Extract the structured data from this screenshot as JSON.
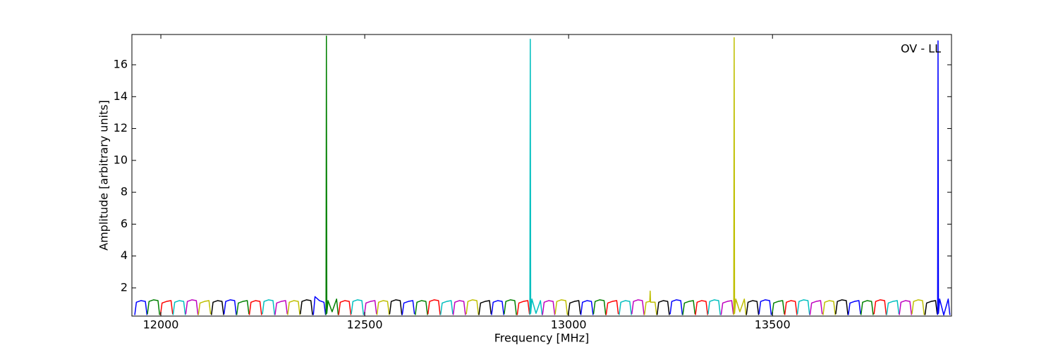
{
  "chart_data": {
    "type": "line",
    "annotation": "OV - LL",
    "xlabel": "Frequency [MHz]",
    "ylabel": "Amplitude [arbitrary units]",
    "xlim": [
      11929,
      13939
    ],
    "ylim": [
      0.23,
      17.9
    ],
    "xticks": [
      12000,
      12500,
      13000,
      13500
    ],
    "yticks": [
      2,
      4,
      6,
      8,
      10,
      12,
      14,
      16
    ],
    "grid": false,
    "series": [
      {
        "color": "#0000ff",
        "x": [
          11936,
          11940,
          11951,
          11962,
          11966
        ],
        "values": [
          0.3,
          1.1,
          1.2,
          1.15,
          0.3
        ]
      },
      {
        "color": "#008000",
        "x": [
          11967,
          11971,
          11982,
          11993,
          11997
        ],
        "values": [
          0.35,
          1.15,
          1.25,
          1.2,
          0.3
        ]
      },
      {
        "color": "#ff0000",
        "x": [
          11999,
          12003,
          12014,
          12025,
          12029
        ],
        "values": [
          0.3,
          1.05,
          1.15,
          1.2,
          0.35
        ]
      },
      {
        "color": "#00bfbf",
        "x": [
          12030,
          12034,
          12045,
          12056,
          12060
        ],
        "values": [
          0.3,
          1.1,
          1.2,
          1.15,
          0.3
        ]
      },
      {
        "color": "#bf00bf",
        "x": [
          12061,
          12065,
          12076,
          12087,
          12091
        ],
        "values": [
          0.35,
          1.15,
          1.25,
          1.2,
          0.3
        ]
      },
      {
        "color": "#bfbf00",
        "x": [
          12092,
          12096,
          12107,
          12118,
          12122
        ],
        "values": [
          0.3,
          1.05,
          1.15,
          1.2,
          0.35
        ]
      },
      {
        "color": "#000000",
        "x": [
          12124,
          12128,
          12139,
          12150,
          12154
        ],
        "values": [
          0.3,
          1.1,
          1.2,
          1.15,
          0.3
        ]
      },
      {
        "color": "#0000ff",
        "x": [
          12155,
          12159,
          12170,
          12181,
          12185
        ],
        "values": [
          0.35,
          1.15,
          1.25,
          1.2,
          0.3
        ]
      },
      {
        "color": "#008000",
        "x": [
          12186,
          12190,
          12201,
          12212,
          12216
        ],
        "values": [
          0.3,
          1.05,
          1.15,
          1.2,
          0.35
        ]
      },
      {
        "color": "#ff0000",
        "x": [
          12217,
          12221,
          12232,
          12243,
          12247
        ],
        "values": [
          0.3,
          1.1,
          1.2,
          1.15,
          0.3
        ]
      },
      {
        "color": "#00bfbf",
        "x": [
          12249,
          12253,
          12264,
          12275,
          12279
        ],
        "values": [
          0.35,
          1.15,
          1.25,
          1.2,
          0.3
        ]
      },
      {
        "color": "#bf00bf",
        "x": [
          12280,
          12284,
          12295,
          12306,
          12310
        ],
        "values": [
          0.3,
          1.05,
          1.15,
          1.2,
          0.35
        ]
      },
      {
        "color": "#bfbf00",
        "x": [
          12311,
          12315,
          12326,
          12337,
          12341
        ],
        "values": [
          0.3,
          1.1,
          1.2,
          1.15,
          0.3
        ]
      },
      {
        "color": "#000000",
        "x": [
          12342,
          12346,
          12357,
          12368,
          12372
        ],
        "values": [
          0.35,
          1.15,
          1.25,
          1.2,
          0.3
        ]
      },
      {
        "color": "#0000ff",
        "x": [
          12374,
          12378,
          12389,
          12400,
          12404
        ],
        "values": [
          0.3,
          1.45,
          1.2,
          1.1,
          0.3
        ]
      },
      {
        "color": "#008000",
        "x": [
          12405,
          12406,
          12407,
          12410,
          12420,
          12431,
          12435
        ],
        "values": [
          0.3,
          17.8,
          0.4,
          1.2,
          0.5,
          1.3,
          0.3
        ]
      },
      {
        "color": "#ff0000",
        "x": [
          12436,
          12440,
          12451,
          12462,
          12466
        ],
        "values": [
          0.3,
          1.1,
          1.2,
          1.15,
          0.3
        ]
      },
      {
        "color": "#00bfbf",
        "x": [
          12467,
          12471,
          12482,
          12493,
          12497
        ],
        "values": [
          0.35,
          1.15,
          1.25,
          1.2,
          0.3
        ]
      },
      {
        "color": "#bf00bf",
        "x": [
          12499,
          12503,
          12514,
          12525,
          12529
        ],
        "values": [
          0.3,
          1.05,
          1.15,
          1.2,
          0.35
        ]
      },
      {
        "color": "#bfbf00",
        "x": [
          12530,
          12534,
          12545,
          12556,
          12560
        ],
        "values": [
          0.3,
          1.1,
          1.2,
          1.15,
          0.3
        ]
      },
      {
        "color": "#000000",
        "x": [
          12561,
          12565,
          12576,
          12587,
          12591
        ],
        "values": [
          0.35,
          1.15,
          1.25,
          1.2,
          0.3
        ]
      },
      {
        "color": "#0000ff",
        "x": [
          12592,
          12596,
          12607,
          12618,
          12622
        ],
        "values": [
          0.3,
          1.05,
          1.15,
          1.2,
          0.35
        ]
      },
      {
        "color": "#008000",
        "x": [
          12624,
          12628,
          12639,
          12650,
          12654
        ],
        "values": [
          0.3,
          1.1,
          1.2,
          1.15,
          0.3
        ]
      },
      {
        "color": "#ff0000",
        "x": [
          12655,
          12659,
          12670,
          12681,
          12685
        ],
        "values": [
          0.35,
          1.15,
          1.25,
          1.2,
          0.3
        ]
      },
      {
        "color": "#00bfbf",
        "x": [
          12686,
          12690,
          12701,
          12712,
          12716
        ],
        "values": [
          0.3,
          1.05,
          1.15,
          1.2,
          0.35
        ]
      },
      {
        "color": "#bf00bf",
        "x": [
          12717,
          12721,
          12732,
          12743,
          12747
        ],
        "values": [
          0.3,
          1.1,
          1.2,
          1.15,
          0.3
        ]
      },
      {
        "color": "#bfbf00",
        "x": [
          12749,
          12753,
          12764,
          12775,
          12779
        ],
        "values": [
          0.35,
          1.15,
          1.25,
          1.2,
          0.3
        ]
      },
      {
        "color": "#000000",
        "x": [
          12780,
          12784,
          12795,
          12806,
          12810
        ],
        "values": [
          0.3,
          1.05,
          1.15,
          1.2,
          0.35
        ]
      },
      {
        "color": "#0000ff",
        "x": [
          12811,
          12815,
          12826,
          12837,
          12841
        ],
        "values": [
          0.3,
          1.1,
          1.2,
          1.15,
          0.3
        ]
      },
      {
        "color": "#008000",
        "x": [
          12842,
          12846,
          12857,
          12868,
          12872
        ],
        "values": [
          0.35,
          1.15,
          1.25,
          1.2,
          0.3
        ]
      },
      {
        "color": "#ff0000",
        "x": [
          12874,
          12878,
          12889,
          12900,
          12904
        ],
        "values": [
          0.3,
          1.05,
          1.15,
          1.2,
          0.35
        ]
      },
      {
        "color": "#00bfbf",
        "x": [
          12905,
          12906,
          12907,
          12910,
          12920,
          12931,
          12935
        ],
        "values": [
          0.3,
          17.6,
          0.4,
          1.3,
          0.4,
          1.2,
          0.3
        ]
      },
      {
        "color": "#bf00bf",
        "x": [
          12936,
          12940,
          12951,
          12962,
          12966
        ],
        "values": [
          0.3,
          1.1,
          1.2,
          1.15,
          0.3
        ]
      },
      {
        "color": "#bfbf00",
        "x": [
          12967,
          12971,
          12982,
          12993,
          12997
        ],
        "values": [
          0.35,
          1.15,
          1.25,
          1.2,
          0.3
        ]
      },
      {
        "color": "#000000",
        "x": [
          12999,
          13003,
          13014,
          13025,
          13029
        ],
        "values": [
          0.3,
          1.05,
          1.15,
          1.2,
          0.35
        ]
      },
      {
        "color": "#0000ff",
        "x": [
          13030,
          13034,
          13045,
          13056,
          13060
        ],
        "values": [
          0.3,
          1.1,
          1.2,
          1.15,
          0.3
        ]
      },
      {
        "color": "#008000",
        "x": [
          13061,
          13065,
          13076,
          13087,
          13091
        ],
        "values": [
          0.35,
          1.15,
          1.25,
          1.2,
          0.3
        ]
      },
      {
        "color": "#ff0000",
        "x": [
          13092,
          13096,
          13107,
          13118,
          13122
        ],
        "values": [
          0.3,
          1.05,
          1.15,
          1.2,
          0.35
        ]
      },
      {
        "color": "#00bfbf",
        "x": [
          13124,
          13128,
          13139,
          13150,
          13154
        ],
        "values": [
          0.3,
          1.1,
          1.2,
          1.15,
          0.3
        ]
      },
      {
        "color": "#bf00bf",
        "x": [
          13155,
          13159,
          13170,
          13181,
          13185
        ],
        "values": [
          0.35,
          1.15,
          1.25,
          1.2,
          0.3
        ]
      },
      {
        "color": "#bfbf00",
        "x": [
          13186,
          13190,
          13199,
          13200,
          13201,
          13212,
          13216
        ],
        "values": [
          0.3,
          1.1,
          1.15,
          1.8,
          1.1,
          1.1,
          0.3
        ]
      },
      {
        "color": "#000000",
        "x": [
          13217,
          13221,
          13232,
          13243,
          13247
        ],
        "values": [
          0.3,
          1.1,
          1.2,
          1.15,
          0.3
        ]
      },
      {
        "color": "#0000ff",
        "x": [
          13249,
          13253,
          13264,
          13275,
          13279
        ],
        "values": [
          0.35,
          1.15,
          1.25,
          1.2,
          0.3
        ]
      },
      {
        "color": "#008000",
        "x": [
          13280,
          13284,
          13295,
          13306,
          13310
        ],
        "values": [
          0.3,
          1.05,
          1.15,
          1.2,
          0.35
        ]
      },
      {
        "color": "#ff0000",
        "x": [
          13311,
          13315,
          13326,
          13337,
          13341
        ],
        "values": [
          0.3,
          1.1,
          1.2,
          1.15,
          0.3
        ]
      },
      {
        "color": "#00bfbf",
        "x": [
          13342,
          13346,
          13357,
          13368,
          13372
        ],
        "values": [
          0.35,
          1.15,
          1.25,
          1.2,
          0.3
        ]
      },
      {
        "color": "#bf00bf",
        "x": [
          13374,
          13378,
          13389,
          13400,
          13404
        ],
        "values": [
          0.3,
          1.05,
          1.15,
          1.2,
          0.35
        ]
      },
      {
        "color": "#bfbf00",
        "x": [
          13405,
          13406,
          13407,
          13410,
          13420,
          13431,
          13435
        ],
        "values": [
          0.3,
          17.7,
          0.4,
          1.3,
          0.5,
          1.3,
          0.3
        ]
      },
      {
        "color": "#000000",
        "x": [
          13436,
          13440,
          13451,
          13462,
          13466
        ],
        "values": [
          0.3,
          1.1,
          1.2,
          1.15,
          0.3
        ]
      },
      {
        "color": "#0000ff",
        "x": [
          13467,
          13471,
          13482,
          13493,
          13497
        ],
        "values": [
          0.35,
          1.15,
          1.25,
          1.2,
          0.3
        ]
      },
      {
        "color": "#008000",
        "x": [
          13499,
          13503,
          13514,
          13525,
          13529
        ],
        "values": [
          0.3,
          1.05,
          1.15,
          1.2,
          0.35
        ]
      },
      {
        "color": "#ff0000",
        "x": [
          13530,
          13534,
          13545,
          13556,
          13560
        ],
        "values": [
          0.3,
          1.1,
          1.2,
          1.15,
          0.3
        ]
      },
      {
        "color": "#00bfbf",
        "x": [
          13561,
          13565,
          13576,
          13587,
          13591
        ],
        "values": [
          0.35,
          1.15,
          1.25,
          1.2,
          0.3
        ]
      },
      {
        "color": "#bf00bf",
        "x": [
          13592,
          13596,
          13607,
          13618,
          13622
        ],
        "values": [
          0.3,
          1.05,
          1.15,
          1.2,
          0.35
        ]
      },
      {
        "color": "#bfbf00",
        "x": [
          13624,
          13628,
          13639,
          13650,
          13654
        ],
        "values": [
          0.3,
          1.1,
          1.2,
          1.15,
          0.3
        ]
      },
      {
        "color": "#000000",
        "x": [
          13655,
          13659,
          13670,
          13681,
          13685
        ],
        "values": [
          0.35,
          1.15,
          1.25,
          1.2,
          0.3
        ]
      },
      {
        "color": "#0000ff",
        "x": [
          13686,
          13690,
          13701,
          13712,
          13716
        ],
        "values": [
          0.3,
          1.05,
          1.15,
          1.2,
          0.35
        ]
      },
      {
        "color": "#008000",
        "x": [
          13717,
          13721,
          13732,
          13743,
          13747
        ],
        "values": [
          0.3,
          1.1,
          1.2,
          1.15,
          0.3
        ]
      },
      {
        "color": "#ff0000",
        "x": [
          13749,
          13753,
          13764,
          13775,
          13779
        ],
        "values": [
          0.35,
          1.15,
          1.25,
          1.2,
          0.3
        ]
      },
      {
        "color": "#00bfbf",
        "x": [
          13780,
          13784,
          13795,
          13806,
          13810
        ],
        "values": [
          0.3,
          1.05,
          1.15,
          1.2,
          0.35
        ]
      },
      {
        "color": "#bf00bf",
        "x": [
          13811,
          13815,
          13826,
          13837,
          13841
        ],
        "values": [
          0.3,
          1.1,
          1.2,
          1.15,
          0.3
        ]
      },
      {
        "color": "#bfbf00",
        "x": [
          13842,
          13846,
          13857,
          13868,
          13872
        ],
        "values": [
          0.35,
          1.15,
          1.25,
          1.2,
          0.3
        ]
      },
      {
        "color": "#000000",
        "x": [
          13874,
          13878,
          13889,
          13900,
          13904
        ],
        "values": [
          0.3,
          1.05,
          1.15,
          1.2,
          0.35
        ]
      },
      {
        "color": "#0000ff",
        "x": [
          13905,
          13906,
          13907,
          13910,
          13920,
          13931,
          13935
        ],
        "values": [
          0.3,
          17.5,
          0.4,
          1.3,
          0.3,
          1.3,
          0.3
        ]
      }
    ]
  }
}
